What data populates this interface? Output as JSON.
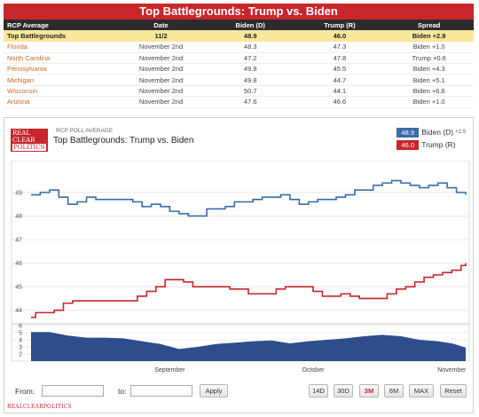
{
  "table": {
    "title": "Top Battlegrounds: Trump vs. Biden",
    "headers": [
      "RCP Average",
      "Date",
      "Biden (D)",
      "Trump (R)",
      "Spread"
    ],
    "average": {
      "name": "Top Battlegrounds",
      "date": "11/2",
      "biden": "48.9",
      "trump": "46.0",
      "spread": "Biden +2.9",
      "party": "d"
    },
    "rows": [
      {
        "name": "Florida",
        "date": "November 2nd",
        "biden": "48.3",
        "trump": "47.3",
        "spread": "Biden +1.0",
        "party": "d"
      },
      {
        "name": "North Carolina",
        "date": "November 2nd",
        "biden": "47.2",
        "trump": "47.8",
        "spread": "Trump +0.6",
        "party": "r"
      },
      {
        "name": "Pennsylvania",
        "date": "November 2nd",
        "biden": "49.8",
        "trump": "45.5",
        "spread": "Biden +4.3",
        "party": "d"
      },
      {
        "name": "Michigan",
        "date": "November 2nd",
        "biden": "49.8",
        "trump": "44.7",
        "spread": "Biden +5.1",
        "party": "d"
      },
      {
        "name": "Wisconsin",
        "date": "November 2nd",
        "biden": "50.7",
        "trump": "44.1",
        "spread": "Biden +6.6",
        "party": "d"
      },
      {
        "name": "Arizona",
        "date": "November 2nd",
        "biden": "47.6",
        "trump": "46.6",
        "spread": "Biden +1.0",
        "party": "d"
      }
    ]
  },
  "panel": {
    "logo_lines": [
      "REAL",
      "CLEAR",
      "POLITICS"
    ],
    "subtitle": "RCP POLL AVERAGE",
    "title": "Top Battlegrounds: Trump vs. Biden",
    "legend": {
      "biden_value": "48.9",
      "biden_label": "Biden (D)",
      "spread": "+2.9",
      "trump_value": "46.0",
      "trump_label": "Trump (R)"
    },
    "footer_brand": "REALCLEARPOLITICS"
  },
  "controls": {
    "from_label": "From:",
    "to_label": "to:",
    "apply_label": "Apply",
    "ranges": [
      "14D",
      "30D",
      "3M",
      "6M",
      "MAX"
    ],
    "active_range": "3M",
    "reset_label": "Reset"
  },
  "colors": {
    "biden": "#3a6ca8",
    "trump": "#c8262c",
    "spread_fill": "#2e4d8c"
  },
  "chart_data": {
    "type": "line",
    "x_labels": [
      "September",
      "October",
      "November"
    ],
    "x_label_positions": [
      30,
      61,
      91
    ],
    "x_range": [
      0,
      94
    ],
    "ylim": [
      43.5,
      50.2
    ],
    "yticks": [
      44,
      45,
      46,
      47,
      48,
      49
    ],
    "series": [
      {
        "name": "Biden (D)",
        "color": "#3a6ca8",
        "points": [
          [
            0,
            48.9
          ],
          [
            2,
            49.0
          ],
          [
            4,
            49.1
          ],
          [
            6,
            48.8
          ],
          [
            8,
            48.5
          ],
          [
            10,
            48.6
          ],
          [
            12,
            48.8
          ],
          [
            14,
            48.7
          ],
          [
            16,
            48.7
          ],
          [
            18,
            48.7
          ],
          [
            20,
            48.7
          ],
          [
            22,
            48.6
          ],
          [
            24,
            48.4
          ],
          [
            26,
            48.5
          ],
          [
            28,
            48.4
          ],
          [
            30,
            48.2
          ],
          [
            32,
            48.1
          ],
          [
            34,
            48.0
          ],
          [
            36,
            48.0
          ],
          [
            38,
            48.3
          ],
          [
            40,
            48.3
          ],
          [
            42,
            48.4
          ],
          [
            44,
            48.6
          ],
          [
            46,
            48.6
          ],
          [
            48,
            48.7
          ],
          [
            50,
            48.8
          ],
          [
            52,
            48.8
          ],
          [
            54,
            48.9
          ],
          [
            56,
            48.7
          ],
          [
            58,
            48.5
          ],
          [
            60,
            48.6
          ],
          [
            62,
            48.7
          ],
          [
            64,
            48.7
          ],
          [
            66,
            48.8
          ],
          [
            68,
            48.9
          ],
          [
            70,
            49.1
          ],
          [
            72,
            49.1
          ],
          [
            74,
            49.3
          ],
          [
            76,
            49.4
          ],
          [
            78,
            49.5
          ],
          [
            80,
            49.4
          ],
          [
            82,
            49.3
          ],
          [
            84,
            49.2
          ],
          [
            86,
            49.3
          ],
          [
            88,
            49.4
          ],
          [
            90,
            49.2
          ],
          [
            92,
            49.0
          ],
          [
            94,
            48.9
          ]
        ]
      },
      {
        "name": "Trump (R)",
        "color": "#c8262c",
        "points": [
          [
            0,
            43.7
          ],
          [
            1,
            43.9
          ],
          [
            3,
            43.9
          ],
          [
            5,
            44.0
          ],
          [
            7,
            44.3
          ],
          [
            9,
            44.4
          ],
          [
            11,
            44.4
          ],
          [
            13,
            44.4
          ],
          [
            15,
            44.4
          ],
          [
            17,
            44.4
          ],
          [
            19,
            44.4
          ],
          [
            21,
            44.4
          ],
          [
            23,
            44.6
          ],
          [
            25,
            44.8
          ],
          [
            27,
            45.0
          ],
          [
            29,
            45.3
          ],
          [
            31,
            45.3
          ],
          [
            33,
            45.2
          ],
          [
            35,
            45.0
          ],
          [
            37,
            45.0
          ],
          [
            39,
            45.0
          ],
          [
            41,
            45.0
          ],
          [
            43,
            44.9
          ],
          [
            45,
            44.9
          ],
          [
            47,
            44.7
          ],
          [
            49,
            44.7
          ],
          [
            51,
            44.7
          ],
          [
            53,
            44.9
          ],
          [
            55,
            45.0
          ],
          [
            57,
            45.0
          ],
          [
            59,
            45.0
          ],
          [
            61,
            44.8
          ],
          [
            63,
            44.6
          ],
          [
            65,
            44.6
          ],
          [
            67,
            44.7
          ],
          [
            69,
            44.6
          ],
          [
            71,
            44.5
          ],
          [
            73,
            44.5
          ],
          [
            75,
            44.5
          ],
          [
            77,
            44.7
          ],
          [
            79,
            44.9
          ],
          [
            81,
            45.0
          ],
          [
            83,
            45.2
          ],
          [
            85,
            45.4
          ],
          [
            87,
            45.5
          ],
          [
            89,
            45.6
          ],
          [
            91,
            45.7
          ],
          [
            93,
            45.9
          ],
          [
            94,
            46.0
          ]
        ]
      }
    ],
    "spread_series": {
      "name": "Spread",
      "ylim": [
        1,
        6
      ],
      "yticks": [
        2,
        3,
        4,
        5,
        6
      ],
      "points": [
        [
          0,
          5.1
        ],
        [
          4,
          5.1
        ],
        [
          8,
          4.6
        ],
        [
          12,
          4.3
        ],
        [
          16,
          4.3
        ],
        [
          20,
          4.2
        ],
        [
          24,
          3.8
        ],
        [
          28,
          3.4
        ],
        [
          32,
          2.7
        ],
        [
          36,
          3.0
        ],
        [
          40,
          3.4
        ],
        [
          44,
          3.6
        ],
        [
          48,
          3.8
        ],
        [
          52,
          3.9
        ],
        [
          56,
          3.5
        ],
        [
          60,
          3.8
        ],
        [
          64,
          4.0
        ],
        [
          68,
          4.2
        ],
        [
          72,
          4.5
        ],
        [
          76,
          4.7
        ],
        [
          80,
          4.5
        ],
        [
          84,
          4.0
        ],
        [
          88,
          3.8
        ],
        [
          91,
          3.5
        ],
        [
          94,
          2.9
        ]
      ]
    }
  }
}
